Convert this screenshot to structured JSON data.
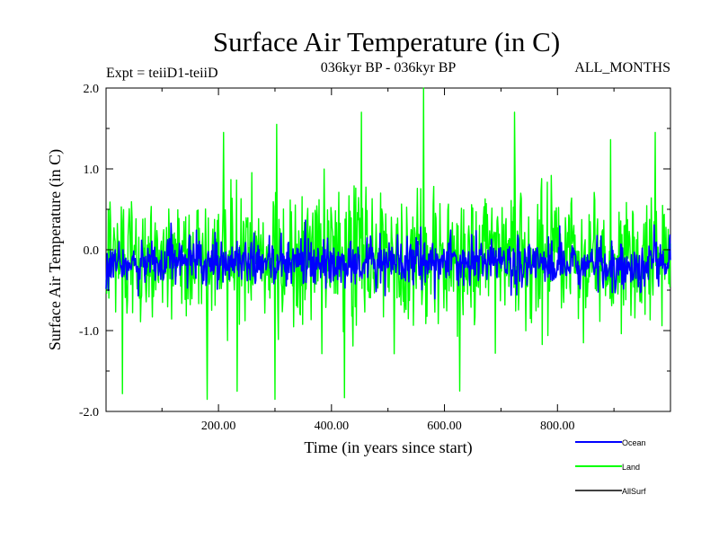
{
  "chart_data": {
    "type": "line",
    "title": "Surface Air Temperature (in C)",
    "subtitle": "036kyr BP - 036kyr BP",
    "experiment_label": "Expt = teiiD1-teiiD",
    "months_label": "ALL_MONTHS",
    "xlabel": "Time (in years since start)",
    "ylabel": "Surface Air Temperature (in C)",
    "xlim": [
      1,
      1000
    ],
    "ylim": [
      -2.0,
      2.0
    ],
    "x_ticks": [
      200,
      400,
      600,
      800
    ],
    "x_tick_labels": [
      "200.00",
      "400.00",
      "600.00",
      "800.00"
    ],
    "y_ticks": [
      -2.0,
      -1.0,
      0.0,
      1.0,
      2.0
    ],
    "y_tick_labels": [
      "-2.0",
      "-1.0",
      "0.0",
      "1.0",
      "2.0"
    ],
    "grid": false,
    "legend_position": "bottom-right",
    "series": [
      {
        "name": "Land",
        "color": "#00ff00",
        "x_range": [
          1,
          1000
        ],
        "summary": {
          "center": -0.1,
          "typical_min": -1.2,
          "typical_max": 0.9,
          "max": 2.0,
          "min": -1.85
        },
        "notable_points": [
          {
            "x": 563,
            "y": 2.0
          },
          {
            "x": 724,
            "y": 1.7
          },
          {
            "x": 453,
            "y": 1.7
          },
          {
            "x": 209,
            "y": 1.45
          },
          {
            "x": 973,
            "y": 1.45
          },
          {
            "x": 303,
            "y": 1.55
          },
          {
            "x": 300,
            "y": -1.85
          },
          {
            "x": 423,
            "y": -1.83
          },
          {
            "x": 233,
            "y": -1.75
          },
          {
            "x": 30,
            "y": -1.78
          }
        ]
      },
      {
        "name": "Ocean",
        "color": "#0000ff",
        "x_range": [
          1,
          1000
        ],
        "summary": {
          "center": -0.15,
          "typical_min": -0.5,
          "typical_max": 0.3,
          "max": 0.55,
          "min": -0.85
        }
      },
      {
        "name": "AllSurf",
        "color": "#000000",
        "x_range": [
          1,
          1000
        ],
        "summary": {
          "center": -0.12
        }
      }
    ]
  },
  "legend": {
    "ocean_label": "Ocean",
    "land_label": "Land",
    "allsurf_label": "AllSurf",
    "ocean_color": "#0000ff",
    "land_color": "#00ff00",
    "allsurf_color": "#000000"
  }
}
